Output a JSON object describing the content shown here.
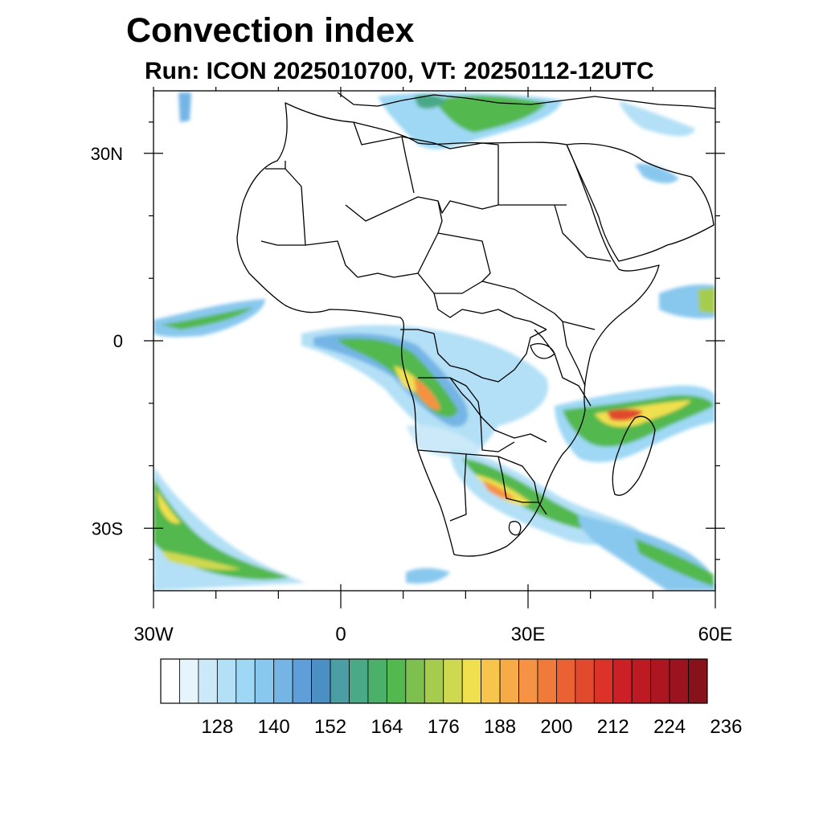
{
  "title": "Convection index",
  "subtitle": "Run: ICON 2025010700,  VT: 20250112-12UTC",
  "map": {
    "lon_range": [
      -30,
      60
    ],
    "lat_range": [
      -40,
      40
    ],
    "lat_labels": [
      {
        "value": 30,
        "label": "30N"
      },
      {
        "value": 0,
        "label": "0"
      },
      {
        "value": -30,
        "label": "30S"
      }
    ],
    "lon_labels": [
      {
        "value": -30,
        "label": "30W"
      },
      {
        "value": 0,
        "label": "0"
      },
      {
        "value": 30,
        "label": "30E"
      },
      {
        "value": 60,
        "label": "60E"
      }
    ],
    "minor_lat_ticks": [
      35,
      20,
      10,
      -10,
      -20,
      -35
    ],
    "minor_lon_ticks": [
      -20,
      -10,
      10,
      20,
      40,
      50
    ]
  },
  "colorbar": {
    "colors": [
      "#ffffff",
      "#e6f4fc",
      "#cbe9f8",
      "#b3e0f6",
      "#9ed8f4",
      "#89c8ee",
      "#75b5e6",
      "#5f9fd9",
      "#4c8fc5",
      "#4b9ea3",
      "#4aa986",
      "#4bb06a",
      "#53b84d",
      "#7dc04f",
      "#a6cc4e",
      "#cfd94f",
      "#f0e04f",
      "#f8c54c",
      "#f6aa48",
      "#f59243",
      "#ef7a3a",
      "#ea6233",
      "#e14a2d",
      "#db3328",
      "#cc2026",
      "#bc1b24",
      "#ad1621",
      "#9b131e",
      "#87121b"
    ],
    "tick_labels": [
      "128",
      "140",
      "152",
      "164",
      "176",
      "188",
      "200",
      "212",
      "224",
      "236"
    ]
  },
  "legend_colors": {
    "land_line": "#000000"
  }
}
